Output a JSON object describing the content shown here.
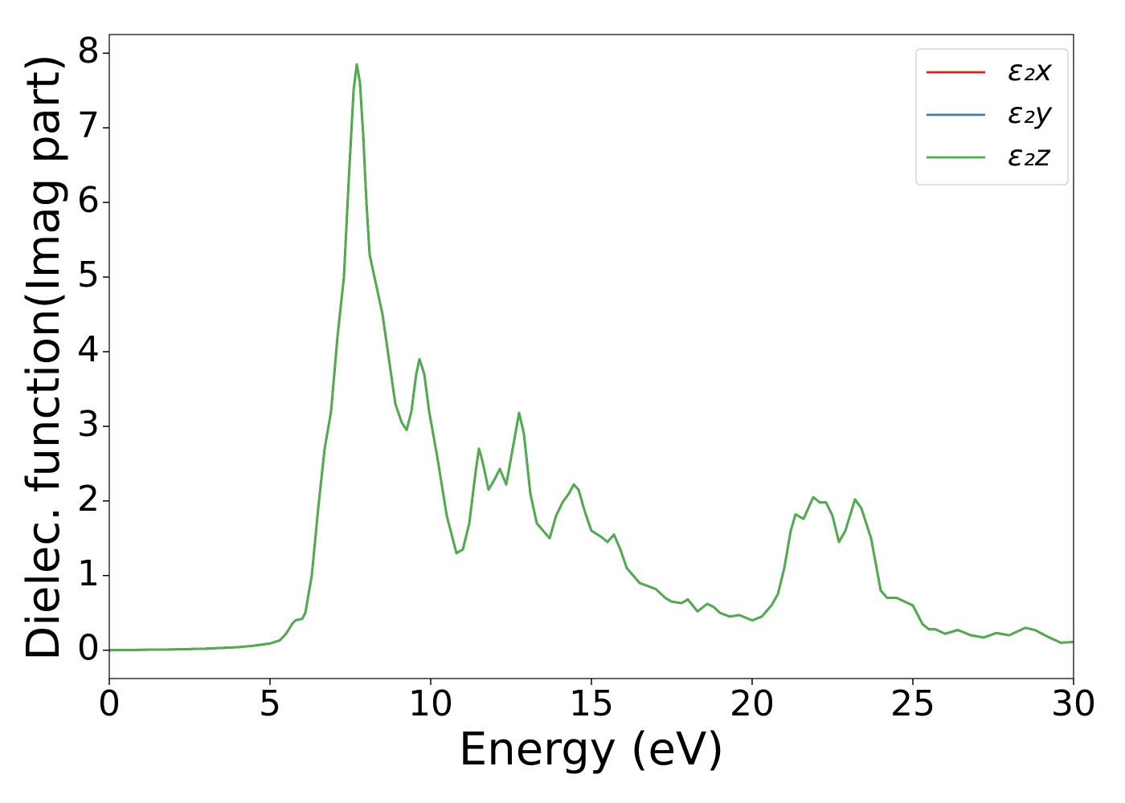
{
  "chart_data": {
    "type": "line",
    "xlabel": "Energy (eV)",
    "ylabel": "Dielec. function(Imag part)",
    "x": [
      0,
      1,
      2,
      3,
      4,
      4.5,
      5,
      5.3,
      5.5,
      5.7,
      5.8,
      6.0,
      6.1,
      6.3,
      6.5,
      6.7,
      6.9,
      7.1,
      7.3,
      7.45,
      7.6,
      7.7,
      7.8,
      7.9,
      8.0,
      8.1,
      8.3,
      8.5,
      8.7,
      8.9,
      9.1,
      9.25,
      9.4,
      9.55,
      9.65,
      9.8,
      9.95,
      10.2,
      10.5,
      10.8,
      11.0,
      11.2,
      11.4,
      11.5,
      11.6,
      11.8,
      12.0,
      12.15,
      12.35,
      12.55,
      12.75,
      12.9,
      13.1,
      13.3,
      13.5,
      13.7,
      13.9,
      14.1,
      14.3,
      14.45,
      14.6,
      14.8,
      15.0,
      15.3,
      15.5,
      15.7,
      15.9,
      16.1,
      16.5,
      17.0,
      17.3,
      17.5,
      17.8,
      18.0,
      18.3,
      18.6,
      18.8,
      19.0,
      19.3,
      19.6,
      20.0,
      20.3,
      20.6,
      20.8,
      21.0,
      21.2,
      21.35,
      21.6,
      21.9,
      22.1,
      22.3,
      22.5,
      22.7,
      22.9,
      23.2,
      23.4,
      23.7,
      24.0,
      24.2,
      24.5,
      25.0,
      25.3,
      25.5,
      25.7,
      26.0,
      26.4,
      26.8,
      27.2,
      27.6,
      28.0,
      28.5,
      28.8,
      29.2,
      29.6,
      30.0
    ],
    "series": [
      {
        "name": "ε₂x",
        "color": "#e41a1c",
        "values": [
          0,
          0.005,
          0.01,
          0.02,
          0.04,
          0.06,
          0.09,
          0.13,
          0.22,
          0.36,
          0.4,
          0.42,
          0.5,
          1.0,
          1.9,
          2.7,
          3.2,
          4.2,
          5.0,
          6.3,
          7.5,
          7.85,
          7.6,
          6.9,
          6.0,
          5.3,
          4.9,
          4.5,
          3.9,
          3.3,
          3.05,
          2.95,
          3.2,
          3.7,
          3.9,
          3.7,
          3.2,
          2.6,
          1.8,
          1.3,
          1.35,
          1.7,
          2.4,
          2.7,
          2.55,
          2.15,
          2.3,
          2.43,
          2.22,
          2.7,
          3.18,
          2.9,
          2.1,
          1.7,
          1.6,
          1.5,
          1.8,
          1.98,
          2.1,
          2.22,
          2.15,
          1.85,
          1.6,
          1.52,
          1.45,
          1.55,
          1.35,
          1.1,
          0.9,
          0.82,
          0.7,
          0.65,
          0.63,
          0.68,
          0.52,
          0.62,
          0.58,
          0.5,
          0.45,
          0.47,
          0.4,
          0.45,
          0.6,
          0.75,
          1.1,
          1.6,
          1.82,
          1.76,
          2.05,
          1.98,
          1.98,
          1.8,
          1.45,
          1.6,
          2.02,
          1.9,
          1.5,
          0.8,
          0.7,
          0.7,
          0.6,
          0.35,
          0.28,
          0.28,
          0.22,
          0.27,
          0.2,
          0.17,
          0.23,
          0.2,
          0.3,
          0.27,
          0.18,
          0.1,
          0.11
        ]
      },
      {
        "name": "ε₂y",
        "color": "#377eb8",
        "values": [
          0,
          0.005,
          0.01,
          0.02,
          0.04,
          0.06,
          0.09,
          0.13,
          0.22,
          0.36,
          0.4,
          0.42,
          0.5,
          1.0,
          1.9,
          2.7,
          3.2,
          4.2,
          5.0,
          6.3,
          7.5,
          7.85,
          7.6,
          6.9,
          6.0,
          5.3,
          4.9,
          4.5,
          3.9,
          3.3,
          3.05,
          2.95,
          3.2,
          3.7,
          3.9,
          3.7,
          3.2,
          2.6,
          1.8,
          1.3,
          1.35,
          1.7,
          2.4,
          2.7,
          2.55,
          2.15,
          2.3,
          2.43,
          2.22,
          2.7,
          3.18,
          2.9,
          2.1,
          1.7,
          1.6,
          1.5,
          1.8,
          1.98,
          2.1,
          2.22,
          2.15,
          1.85,
          1.6,
          1.52,
          1.45,
          1.55,
          1.35,
          1.1,
          0.9,
          0.82,
          0.7,
          0.65,
          0.63,
          0.68,
          0.52,
          0.62,
          0.58,
          0.5,
          0.45,
          0.47,
          0.4,
          0.45,
          0.6,
          0.75,
          1.1,
          1.6,
          1.82,
          1.76,
          2.05,
          1.98,
          1.98,
          1.8,
          1.45,
          1.6,
          2.02,
          1.9,
          1.5,
          0.8,
          0.7,
          0.7,
          0.6,
          0.35,
          0.28,
          0.28,
          0.22,
          0.27,
          0.2,
          0.17,
          0.23,
          0.2,
          0.3,
          0.27,
          0.18,
          0.1,
          0.11
        ]
      },
      {
        "name": "ε₂z",
        "color": "#4daf4a",
        "values": [
          0,
          0.005,
          0.01,
          0.02,
          0.04,
          0.06,
          0.09,
          0.13,
          0.22,
          0.36,
          0.4,
          0.42,
          0.5,
          1.0,
          1.9,
          2.7,
          3.2,
          4.2,
          5.0,
          6.3,
          7.5,
          7.85,
          7.6,
          6.9,
          6.0,
          5.3,
          4.9,
          4.5,
          3.9,
          3.3,
          3.05,
          2.95,
          3.2,
          3.7,
          3.9,
          3.7,
          3.2,
          2.6,
          1.8,
          1.3,
          1.35,
          1.7,
          2.4,
          2.7,
          2.55,
          2.15,
          2.3,
          2.43,
          2.22,
          2.7,
          3.18,
          2.9,
          2.1,
          1.7,
          1.6,
          1.5,
          1.8,
          1.98,
          2.1,
          2.22,
          2.15,
          1.85,
          1.6,
          1.52,
          1.45,
          1.55,
          1.35,
          1.1,
          0.9,
          0.82,
          0.7,
          0.65,
          0.63,
          0.68,
          0.52,
          0.62,
          0.58,
          0.5,
          0.45,
          0.47,
          0.4,
          0.45,
          0.6,
          0.75,
          1.1,
          1.6,
          1.82,
          1.76,
          2.05,
          1.98,
          1.98,
          1.8,
          1.45,
          1.6,
          2.02,
          1.9,
          1.5,
          0.8,
          0.7,
          0.7,
          0.6,
          0.35,
          0.28,
          0.28,
          0.22,
          0.27,
          0.2,
          0.17,
          0.23,
          0.2,
          0.3,
          0.27,
          0.18,
          0.1,
          0.11
        ]
      }
    ],
    "xlim": [
      0,
      30
    ],
    "xticks": [
      0,
      5,
      10,
      15,
      20,
      25,
      30
    ],
    "ylim": [
      -0.38,
      8.25
    ],
    "yticks": [
      0,
      1,
      2,
      3,
      4,
      5,
      6,
      7,
      8
    ],
    "grid": false,
    "legend": "upper right"
  }
}
